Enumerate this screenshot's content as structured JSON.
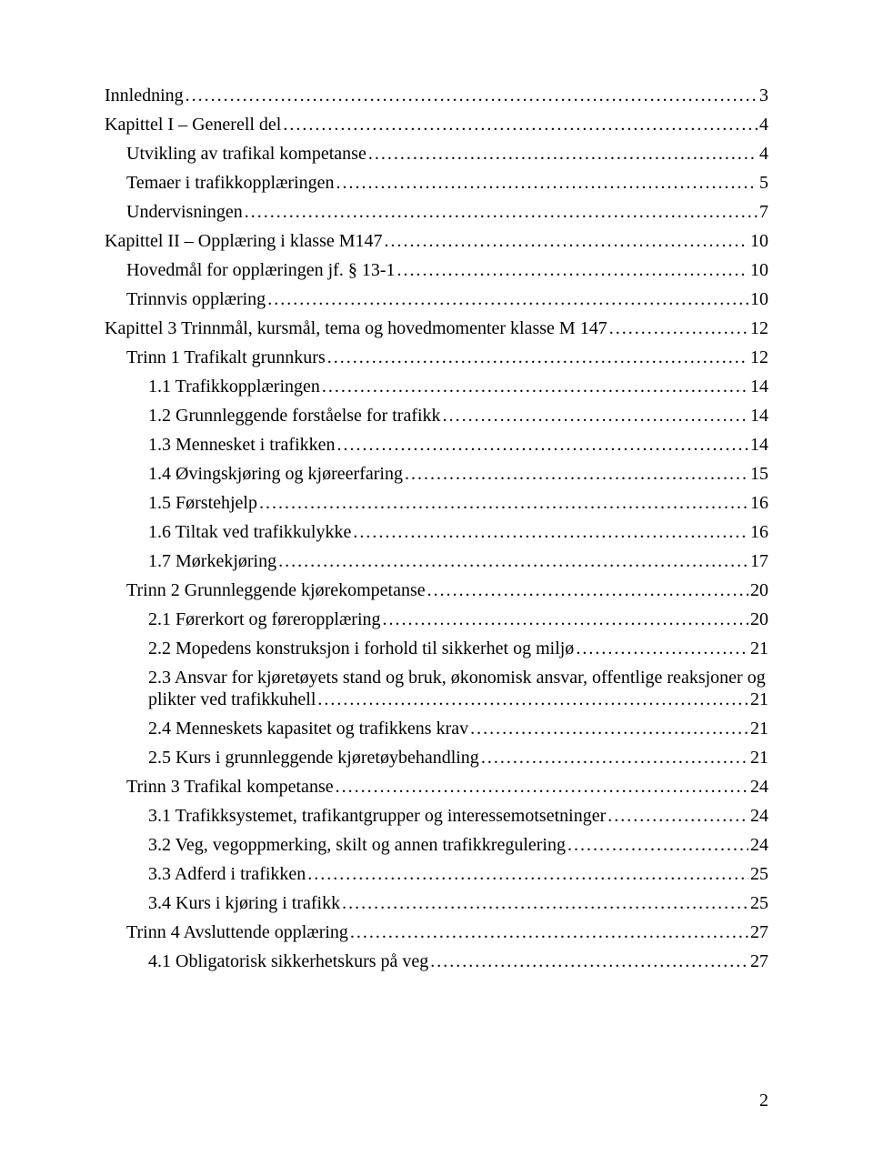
{
  "page_number": "2",
  "toc": [
    {
      "indent": 0,
      "label": "Innledning",
      "page": "3",
      "multiline": false
    },
    {
      "indent": 0,
      "label": "Kapittel I – Generell del",
      "page": "4",
      "multiline": false
    },
    {
      "indent": 1,
      "label": "Utvikling av trafikal kompetanse",
      "page": "4",
      "multiline": false
    },
    {
      "indent": 1,
      "label": "Temaer i trafikkopplæringen",
      "page": "5",
      "multiline": false
    },
    {
      "indent": 1,
      "label": "Undervisningen",
      "page": "7",
      "multiline": false
    },
    {
      "indent": 0,
      "label": "Kapittel II – Opplæring i klasse M147",
      "page": "10",
      "multiline": false
    },
    {
      "indent": 1,
      "label": "Hovedmål for opplæringen jf. § 13-1",
      "page": "10",
      "multiline": false
    },
    {
      "indent": 1,
      "label": "Trinnvis opplæring",
      "page": "10",
      "multiline": false
    },
    {
      "indent": 0,
      "label": "Kapittel 3 Trinnmål, kursmål, tema og hovedmomenter klasse M 147",
      "page": "12",
      "multiline": false
    },
    {
      "indent": 1,
      "label": "Trinn 1 Trafikalt grunnkurs",
      "page": "12",
      "multiline": false
    },
    {
      "indent": 2,
      "label": "1.1 Trafikkopplæringen",
      "page": "14",
      "multiline": false
    },
    {
      "indent": 2,
      "label": "1.2 Grunnleggende forståelse for trafikk",
      "page": "14",
      "multiline": false
    },
    {
      "indent": 2,
      "label": "1.3 Mennesket i trafikken",
      "page": "14",
      "multiline": false
    },
    {
      "indent": 2,
      "label": "1.4 Øvingskjøring og kjøreerfaring",
      "page": "15",
      "multiline": false
    },
    {
      "indent": 2,
      "label": "1.5 Førstehjelp",
      "page": "16",
      "multiline": false
    },
    {
      "indent": 2,
      "label": "1.6 Tiltak ved trafikkulykke",
      "page": "16",
      "multiline": false
    },
    {
      "indent": 2,
      "label": "1.7 Mørkekjøring",
      "page": "17",
      "multiline": false
    },
    {
      "indent": 1,
      "label": "Trinn 2 Grunnleggende kjørekompetanse",
      "page": "20",
      "multiline": false
    },
    {
      "indent": 2,
      "label": "2.1 Førerkort og føreropplæring",
      "page": "20",
      "multiline": false
    },
    {
      "indent": 2,
      "label": "2.2 Mopedens konstruksjon i forhold til sikkerhet og miljø",
      "page": "21",
      "multiline": false
    },
    {
      "indent": 2,
      "label": "2.3 Ansvar for kjøretøyets stand og bruk, økonomisk ansvar, offentlige reaksjoner og plikter ved trafikkuhell",
      "page": "21",
      "multiline": true
    },
    {
      "indent": 2,
      "label": "2.4 Menneskets kapasitet og trafikkens krav",
      "page": "21",
      "multiline": false
    },
    {
      "indent": 2,
      "label": "2.5 Kurs i grunnleggende kjøretøybehandling",
      "page": "21",
      "multiline": false
    },
    {
      "indent": 1,
      "label": "Trinn 3 Trafikal kompetanse",
      "page": "24",
      "multiline": false
    },
    {
      "indent": 2,
      "label": "3.1 Trafikksystemet, trafikantgrupper og interessemotsetninger",
      "page": "24",
      "multiline": false
    },
    {
      "indent": 2,
      "label": "3.2 Veg, vegoppmerking, skilt og annen trafikkregulering",
      "page": "24",
      "multiline": false
    },
    {
      "indent": 2,
      "label": "3.3 Adferd i trafikken",
      "page": "25",
      "multiline": false
    },
    {
      "indent": 2,
      "label": "3.4 Kurs i kjøring i trafikk",
      "page": "25",
      "multiline": false
    },
    {
      "indent": 1,
      "label": "Trinn 4 Avsluttende opplæring",
      "page": "27",
      "multiline": false
    },
    {
      "indent": 2,
      "label": "4.1 Obligatorisk sikkerhetskurs på veg",
      "page": "27",
      "multiline": false
    }
  ]
}
